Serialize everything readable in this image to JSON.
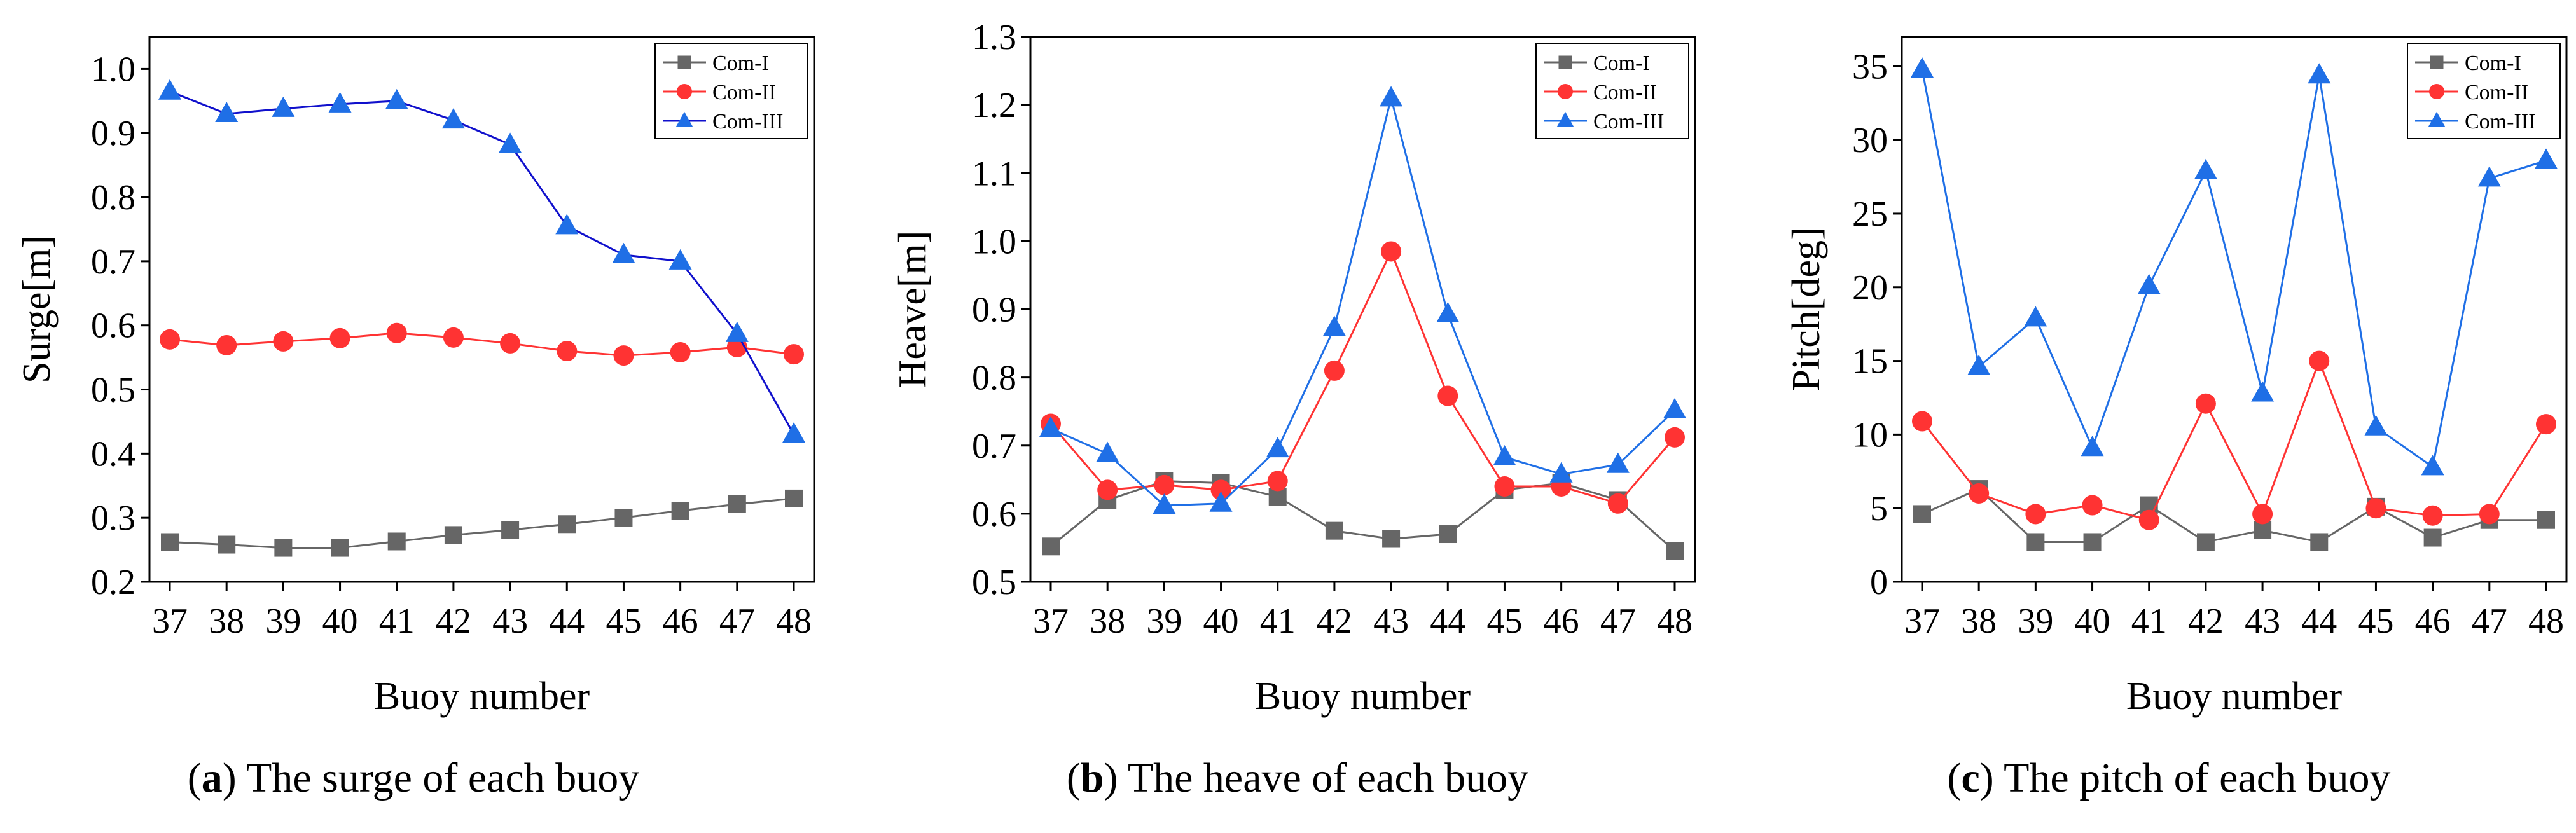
{
  "chart_data": [
    {
      "type": "line",
      "panel_letter": "a",
      "caption": "The surge of each buoy",
      "xlabel": "Buoy number",
      "ylabel": "Surge[m]",
      "categories": [
        "37",
        "38",
        "39",
        "40",
        "41",
        "42",
        "43",
        "44",
        "45",
        "46",
        "47",
        "48"
      ],
      "ylim": [
        0.2,
        1.05
      ],
      "yticks": [
        0.2,
        0.3,
        0.4,
        0.5,
        0.6,
        0.7,
        0.8,
        0.9,
        1.0
      ],
      "ytick_labels": [
        "0.2",
        "0.3",
        "0.4",
        "0.5",
        "0.6",
        "0.7",
        "0.8",
        "0.9",
        "1.0"
      ],
      "legend_position": "top-right",
      "series": [
        {
          "name": "Com-I",
          "marker": "square",
          "color": "#666666",
          "values": [
            0.262,
            0.258,
            0.253,
            0.253,
            0.263,
            0.273,
            0.281,
            0.29,
            0.3,
            0.311,
            0.321,
            0.33
          ]
        },
        {
          "name": "Com-II",
          "marker": "circle",
          "color": "#ff3333",
          "values": [
            0.578,
            0.569,
            0.575,
            0.58,
            0.588,
            0.581,
            0.572,
            0.56,
            0.553,
            0.558,
            0.566,
            0.555
          ]
        },
        {
          "name": "Com-III",
          "marker": "triangle",
          "color": "#1f6fe6",
          "line_color": "#1010cc",
          "values": [
            0.965,
            0.93,
            0.938,
            0.945,
            0.95,
            0.92,
            0.882,
            0.755,
            0.71,
            0.7,
            0.587,
            0.43
          ]
        }
      ]
    },
    {
      "type": "line",
      "panel_letter": "b",
      "caption": "The heave of each buoy",
      "xlabel": "Buoy number",
      "ylabel": "Heave[m]",
      "categories": [
        "37",
        "38",
        "39",
        "40",
        "41",
        "42",
        "43",
        "44",
        "45",
        "46",
        "47",
        "48"
      ],
      "ylim": [
        0.5,
        1.3
      ],
      "yticks": [
        0.5,
        0.6,
        0.7,
        0.8,
        0.9,
        1.0,
        1.1,
        1.2,
        1.3
      ],
      "ytick_labels": [
        "0.5",
        "0.6",
        "0.7",
        "0.8",
        "0.9",
        "1.0",
        "1.1",
        "1.2",
        "1.3"
      ],
      "legend_position": "top-right",
      "series": [
        {
          "name": "Com-I",
          "marker": "square",
          "color": "#666666",
          "values": [
            0.552,
            0.62,
            0.648,
            0.645,
            0.625,
            0.575,
            0.563,
            0.57,
            0.635,
            0.645,
            0.62,
            0.545
          ]
        },
        {
          "name": "Com-II",
          "marker": "circle",
          "color": "#ff3333",
          "values": [
            0.732,
            0.635,
            0.642,
            0.635,
            0.648,
            0.81,
            0.985,
            0.773,
            0.64,
            0.64,
            0.615,
            0.712
          ]
        },
        {
          "name": "Com-III",
          "marker": "triangle",
          "color": "#1f6fe6",
          "line_color": "#1f6fe6",
          "values": [
            0.725,
            0.688,
            0.612,
            0.615,
            0.695,
            0.873,
            1.21,
            0.893,
            0.683,
            0.658,
            0.672,
            0.752
          ]
        }
      ]
    },
    {
      "type": "line",
      "panel_letter": "c",
      "caption": "The pitch of each buoy",
      "xlabel": "Buoy number",
      "ylabel": "Pitch[deg]",
      "categories": [
        "37",
        "38",
        "39",
        "40",
        "41",
        "42",
        "43",
        "44",
        "45",
        "46",
        "47",
        "48"
      ],
      "ylim": [
        0,
        37
      ],
      "yticks": [
        0,
        5,
        10,
        15,
        20,
        25,
        30,
        35
      ],
      "ytick_labels": [
        "0",
        "5",
        "10",
        "15",
        "20",
        "25",
        "30",
        "35"
      ],
      "legend_position": "top-right",
      "series": [
        {
          "name": "Com-I",
          "marker": "square",
          "color": "#666666",
          "values": [
            4.6,
            6.3,
            2.7,
            2.7,
            5.2,
            2.7,
            3.5,
            2.7,
            5.1,
            3.0,
            4.2,
            4.2
          ]
        },
        {
          "name": "Com-II",
          "marker": "circle",
          "color": "#ff3333",
          "values": [
            10.9,
            6.0,
            4.6,
            5.2,
            4.2,
            12.1,
            4.6,
            15.0,
            5.0,
            4.5,
            4.6,
            10.7
          ]
        },
        {
          "name": "Com-III",
          "marker": "triangle",
          "color": "#1f6fe6",
          "line_color": "#1f6fe6",
          "values": [
            34.8,
            14.6,
            17.9,
            9.1,
            20.1,
            27.9,
            12.8,
            34.4,
            10.5,
            7.8,
            27.4,
            28.6
          ]
        }
      ]
    }
  ]
}
